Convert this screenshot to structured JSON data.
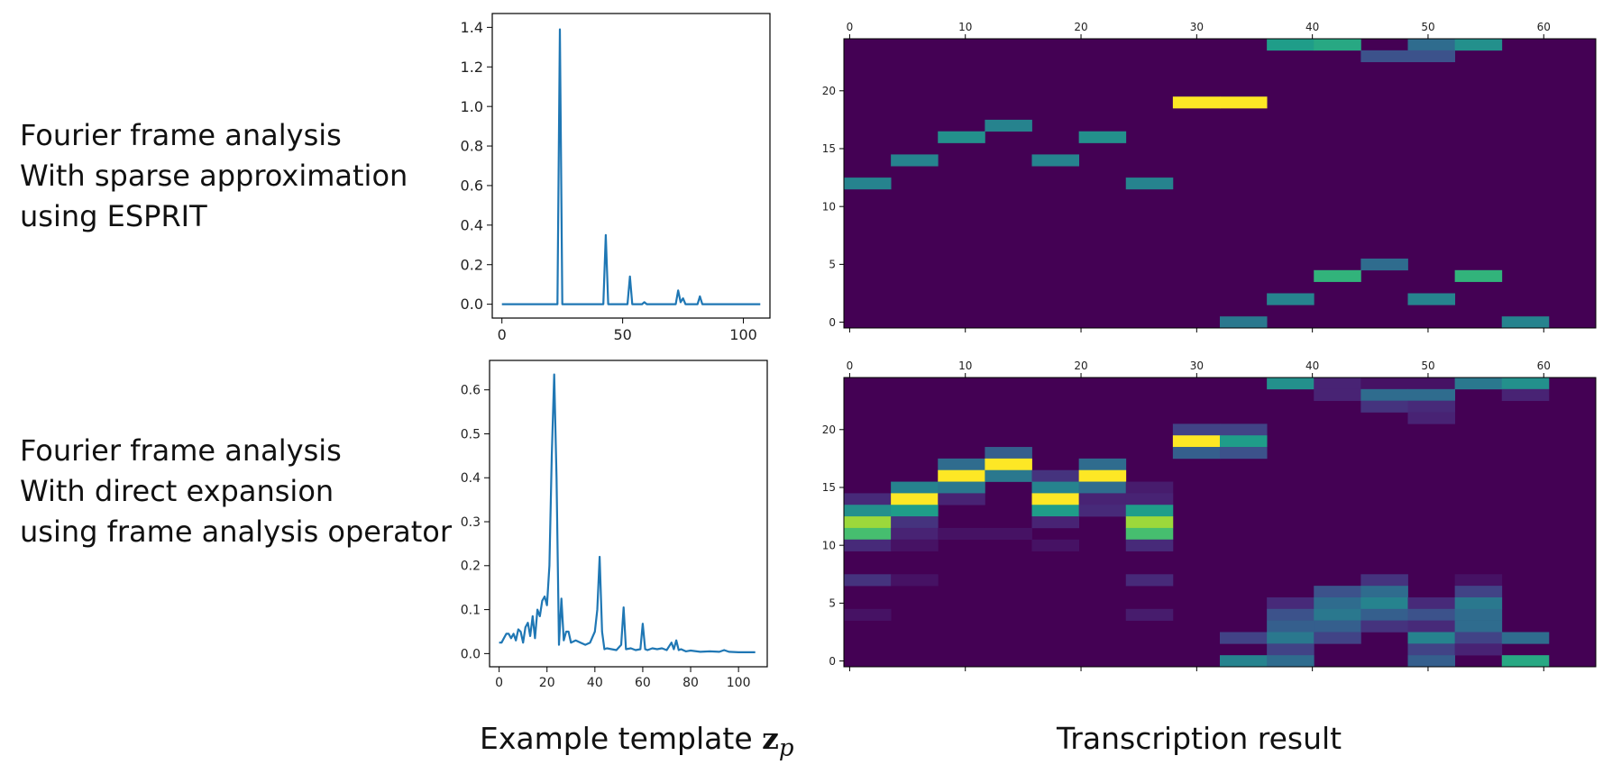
{
  "rows": [
    {
      "lines": [
        "Fourier frame analysis",
        "With sparse approximation",
        "using ESPRIT"
      ]
    },
    {
      "lines": [
        "Fourier frame analysis",
        "With direct expansion",
        "using frame analysis operator"
      ]
    }
  ],
  "captions": {
    "left_prefix": "Example template ",
    "left_symbol": "z",
    "left_subscript": "p",
    "right": "Transcription result"
  },
  "colors": {
    "line": "#1f77b4",
    "viridis": [
      "#440154",
      "#482777",
      "#3f4a8a",
      "#31688e",
      "#26828e",
      "#1f9e89",
      "#35b779",
      "#6ece58",
      "#b5de2b",
      "#fde725"
    ]
  },
  "chart_data": [
    {
      "type": "line",
      "xlim": [
        -4,
        111
      ],
      "ylim": [
        -0.07,
        1.47
      ],
      "xticks": [
        "0",
        "50",
        "100"
      ],
      "yticks": [
        "0.0",
        "0.2",
        "0.4",
        "0.6",
        "0.8",
        "1.0",
        "1.2",
        "1.4"
      ],
      "x": [
        0,
        23,
        24,
        25,
        42,
        43,
        44,
        52,
        53,
        54,
        58,
        59,
        60,
        72,
        73,
        74,
        75,
        76,
        81,
        82,
        83,
        107
      ],
      "y": [
        0,
        0,
        1.39,
        0,
        0,
        0.35,
        0,
        0,
        0.14,
        0,
        0,
        0.01,
        0,
        0,
        0.07,
        0.01,
        0.03,
        0,
        0,
        0.04,
        0,
        0
      ]
    },
    {
      "type": "heatmap",
      "x_tick_labels": [
        "0",
        "10",
        "20",
        "30",
        "40",
        "50",
        "60"
      ],
      "y_tick_labels": [
        "0",
        "5",
        "10",
        "15",
        "20"
      ],
      "n_cols": 16,
      "n_rows": 25,
      "xlim": [
        -0.5,
        64.5
      ],
      "ylim": [
        -0.5,
        24.5
      ],
      "vmax": 1.0,
      "cells": [
        [
          9,
          24,
          0.55
        ],
        [
          10,
          24,
          0.6
        ],
        [
          12,
          24,
          0.35
        ],
        [
          13,
          24,
          0.5
        ],
        [
          11,
          23,
          0.25
        ],
        [
          12,
          23,
          0.25
        ],
        [
          7,
          19,
          1.0
        ],
        [
          8,
          19,
          1.0
        ],
        [
          3,
          17,
          0.45
        ],
        [
          2,
          16,
          0.5
        ],
        [
          5,
          16,
          0.5
        ],
        [
          1,
          14,
          0.45
        ],
        [
          4,
          14,
          0.45
        ],
        [
          0,
          12,
          0.45
        ],
        [
          6,
          12,
          0.45
        ],
        [
          11,
          5,
          0.35
        ],
        [
          10,
          4,
          0.65
        ],
        [
          13,
          4,
          0.65
        ],
        [
          9,
          2,
          0.45
        ],
        [
          12,
          2,
          0.45
        ],
        [
          8,
          0,
          0.4
        ],
        [
          14,
          0,
          0.45
        ]
      ]
    },
    {
      "type": "line",
      "xlim": [
        -4,
        112
      ],
      "ylim": [
        -0.03,
        0.667
      ],
      "xticks": [
        "0",
        "20",
        "40",
        "60",
        "80",
        "100"
      ],
      "yticks": [
        "0.0",
        "0.1",
        "0.2",
        "0.3",
        "0.4",
        "0.5",
        "0.6"
      ],
      "x": [
        0,
        1,
        2,
        3,
        4,
        5,
        6,
        7,
        8,
        9,
        10,
        11,
        12,
        13,
        14,
        15,
        16,
        17,
        18,
        19,
        20,
        21,
        22,
        23,
        24,
        25,
        26,
        27,
        28,
        29,
        30,
        32,
        34,
        36,
        38,
        40,
        41,
        42,
        43,
        44,
        45,
        47,
        49,
        51,
        52,
        53,
        55,
        57,
        59,
        60,
        61,
        62,
        64,
        66,
        68,
        70,
        72,
        73,
        74,
        75,
        76,
        78,
        80,
        84,
        88,
        92,
        94,
        96,
        100,
        104,
        107
      ],
      "y": [
        0.025,
        0.025,
        0.035,
        0.045,
        0.045,
        0.035,
        0.045,
        0.03,
        0.055,
        0.05,
        0.025,
        0.06,
        0.07,
        0.04,
        0.085,
        0.035,
        0.1,
        0.085,
        0.12,
        0.13,
        0.11,
        0.2,
        0.45,
        0.635,
        0.4,
        0.02,
        0.125,
        0.03,
        0.05,
        0.05,
        0.025,
        0.03,
        0.025,
        0.02,
        0.025,
        0.05,
        0.1,
        0.22,
        0.05,
        0.01,
        0.012,
        0.01,
        0.008,
        0.02,
        0.105,
        0.01,
        0.012,
        0.008,
        0.01,
        0.068,
        0.01,
        0.008,
        0.012,
        0.01,
        0.012,
        0.008,
        0.025,
        0.01,
        0.03,
        0.008,
        0.01,
        0.005,
        0.007,
        0.004,
        0.005,
        0.004,
        0.008,
        0.004,
        0.003,
        0.003,
        0.003
      ]
    },
    {
      "type": "heatmap",
      "x_tick_labels": [
        "0",
        "10",
        "20",
        "30",
        "40",
        "50",
        "60"
      ],
      "y_tick_labels": [
        "0",
        "5",
        "10",
        "15",
        "20"
      ],
      "n_cols": 16,
      "n_rows": 25,
      "xlim": [
        -0.5,
        64.5
      ],
      "ylim": [
        -0.5,
        24.5
      ],
      "vmax": 1.0,
      "cells": [
        [
          9,
          24,
          0.5
        ],
        [
          10,
          24,
          0.1
        ],
        [
          11,
          24,
          0.05
        ],
        [
          12,
          24,
          0.05
        ],
        [
          13,
          24,
          0.4
        ],
        [
          14,
          24,
          0.5
        ],
        [
          10,
          23,
          0.1
        ],
        [
          11,
          23,
          0.35
        ],
        [
          12,
          23,
          0.35
        ],
        [
          14,
          23,
          0.1
        ],
        [
          11,
          22,
          0.15
        ],
        [
          12,
          22,
          0.12
        ],
        [
          12,
          21,
          0.1
        ],
        [
          7,
          20,
          0.2
        ],
        [
          8,
          20,
          0.2
        ],
        [
          7,
          19,
          1.0
        ],
        [
          8,
          19,
          0.55
        ],
        [
          7,
          18,
          0.3
        ],
        [
          8,
          18,
          0.25
        ],
        [
          3,
          18,
          0.3
        ],
        [
          2,
          17,
          0.35
        ],
        [
          3,
          17,
          1.0
        ],
        [
          5,
          17,
          0.35
        ],
        [
          2,
          16,
          1.0
        ],
        [
          3,
          16,
          0.4
        ],
        [
          4,
          16,
          0.15
        ],
        [
          5,
          16,
          1.0
        ],
        [
          1,
          15,
          0.45
        ],
        [
          2,
          15,
          0.4
        ],
        [
          4,
          15,
          0.45
        ],
        [
          5,
          15,
          0.35
        ],
        [
          6,
          15,
          0.08
        ],
        [
          0,
          14,
          0.12
        ],
        [
          1,
          14,
          1.0
        ],
        [
          2,
          14,
          0.1
        ],
        [
          4,
          14,
          1.0
        ],
        [
          5,
          14,
          0.1
        ],
        [
          6,
          14,
          0.1
        ],
        [
          0,
          13,
          0.5
        ],
        [
          1,
          13,
          0.55
        ],
        [
          4,
          13,
          0.55
        ],
        [
          5,
          13,
          0.12
        ],
        [
          6,
          13,
          0.55
        ],
        [
          0,
          12,
          0.85
        ],
        [
          1,
          12,
          0.15
        ],
        [
          4,
          12,
          0.1
        ],
        [
          6,
          12,
          0.85
        ],
        [
          0,
          11,
          0.7
        ],
        [
          1,
          11,
          0.1
        ],
        [
          2,
          11,
          0.05
        ],
        [
          3,
          11,
          0.05
        ],
        [
          6,
          11,
          0.7
        ],
        [
          0,
          10,
          0.12
        ],
        [
          1,
          10,
          0.05
        ],
        [
          4,
          10,
          0.05
        ],
        [
          6,
          10,
          0.12
        ],
        [
          0,
          7,
          0.15
        ],
        [
          1,
          7,
          0.05
        ],
        [
          6,
          7,
          0.12
        ],
        [
          11,
          7,
          0.15
        ],
        [
          13,
          7,
          0.05
        ],
        [
          10,
          6,
          0.25
        ],
        [
          11,
          6,
          0.35
        ],
        [
          13,
          6,
          0.2
        ],
        [
          9,
          5,
          0.12
        ],
        [
          10,
          5,
          0.35
        ],
        [
          11,
          5,
          0.45
        ],
        [
          12,
          5,
          0.12
        ],
        [
          13,
          5,
          0.4
        ],
        [
          0,
          4,
          0.05
        ],
        [
          6,
          4,
          0.08
        ],
        [
          9,
          4,
          0.25
        ],
        [
          10,
          4,
          0.4
        ],
        [
          11,
          4,
          0.3
        ],
        [
          12,
          4,
          0.25
        ],
        [
          13,
          4,
          0.35
        ],
        [
          9,
          3,
          0.3
        ],
        [
          10,
          3,
          0.3
        ],
        [
          11,
          3,
          0.15
        ],
        [
          12,
          3,
          0.12
        ],
        [
          13,
          3,
          0.35
        ],
        [
          8,
          2,
          0.2
        ],
        [
          9,
          2,
          0.4
        ],
        [
          10,
          2,
          0.2
        ],
        [
          12,
          2,
          0.45
        ],
        [
          13,
          2,
          0.2
        ],
        [
          14,
          2,
          0.35
        ],
        [
          9,
          1,
          0.2
        ],
        [
          12,
          1,
          0.2
        ],
        [
          13,
          1,
          0.1
        ],
        [
          8,
          0,
          0.45
        ],
        [
          9,
          0,
          0.35
        ],
        [
          12,
          0,
          0.3
        ],
        [
          14,
          0,
          0.6
        ]
      ]
    }
  ]
}
